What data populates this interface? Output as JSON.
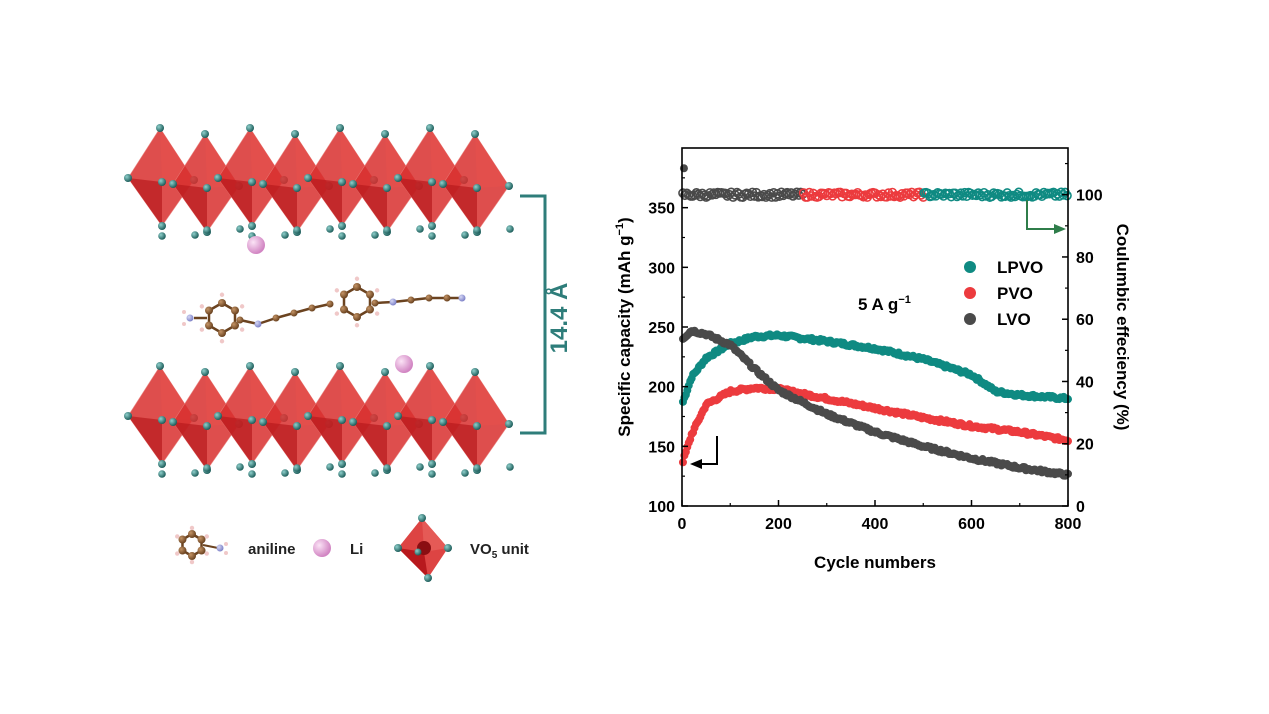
{
  "structure_panel": {
    "interlayer_label": "14.4 Å",
    "legend": {
      "aniline": "aniline",
      "li": "Li",
      "vo5_prefix": "VO",
      "vo5_sub": "5",
      "vo5_suffix": " unit"
    }
  },
  "colors": {
    "octahedron": "#d9302f",
    "octahedron_dark": "#b8191d",
    "vanadium_atom": "#2e7d7a",
    "carbon": "#8a5a2b",
    "nitrogen": "#8a8ed6",
    "hydrogen": "#f0c8c8",
    "li": "#e9a8dc",
    "bracket": "#2e7d7a",
    "LPVO": "#0f8a82",
    "PVO": "#ec3b3e",
    "LVO": "#4a4a4a",
    "ce_arrow": "#2f7d4a"
  },
  "chart_data": {
    "type": "scatter",
    "xlabel": "Cycle numbers",
    "ylabel_left_main": "Specific capacity (mAh g",
    "ylabel_left_sup": "−1",
    "ylabel_left_end": ")",
    "ylabel_right": "Coulumbic effeciency (%)",
    "annotation_main": "5 A g",
    "annotation_sup": "−1",
    "xlim": [
      0,
      800
    ],
    "ylim_left": [
      100,
      400
    ],
    "ylim_right": [
      0,
      115
    ],
    "x_ticks": [
      0,
      200,
      400,
      600,
      800
    ],
    "y_left_ticks": [
      100,
      150,
      200,
      250,
      300,
      350
    ],
    "y_right_ticks": [
      0,
      20,
      40,
      60,
      80,
      100
    ],
    "legend": [
      "LPVO",
      "PVO",
      "LVO"
    ],
    "legend_position": "center-right",
    "capacity_series": [
      {
        "name": "LPVO",
        "x": [
          0,
          20,
          50,
          100,
          150,
          200,
          300,
          400,
          500,
          600,
          650,
          700,
          800
        ],
        "y": [
          185,
          208,
          224,
          236,
          242,
          243,
          238,
          232,
          223,
          210,
          196,
          193,
          190
        ]
      },
      {
        "name": "PVO",
        "x": [
          0,
          20,
          50,
          100,
          150,
          200,
          300,
          400,
          500,
          600,
          700,
          800
        ],
        "y": [
          135,
          160,
          185,
          196,
          199,
          198,
          190,
          182,
          174,
          167,
          162,
          155
        ]
      },
      {
        "name": "LVO",
        "x": [
          0,
          20,
          50,
          100,
          150,
          200,
          300,
          400,
          500,
          600,
          700,
          800
        ],
        "y": [
          240,
          247,
          244,
          235,
          215,
          197,
          177,
          162,
          150,
          140,
          132,
          126
        ]
      }
    ],
    "ce_series": [
      {
        "name": "LVO",
        "x_range": [
          0,
          250
        ],
        "value": 100
      },
      {
        "name": "PVO",
        "x_range": [
          250,
          500
        ],
        "value": 100
      },
      {
        "name": "LPVO",
        "x_range": [
          500,
          800
        ],
        "value": 100
      }
    ]
  }
}
